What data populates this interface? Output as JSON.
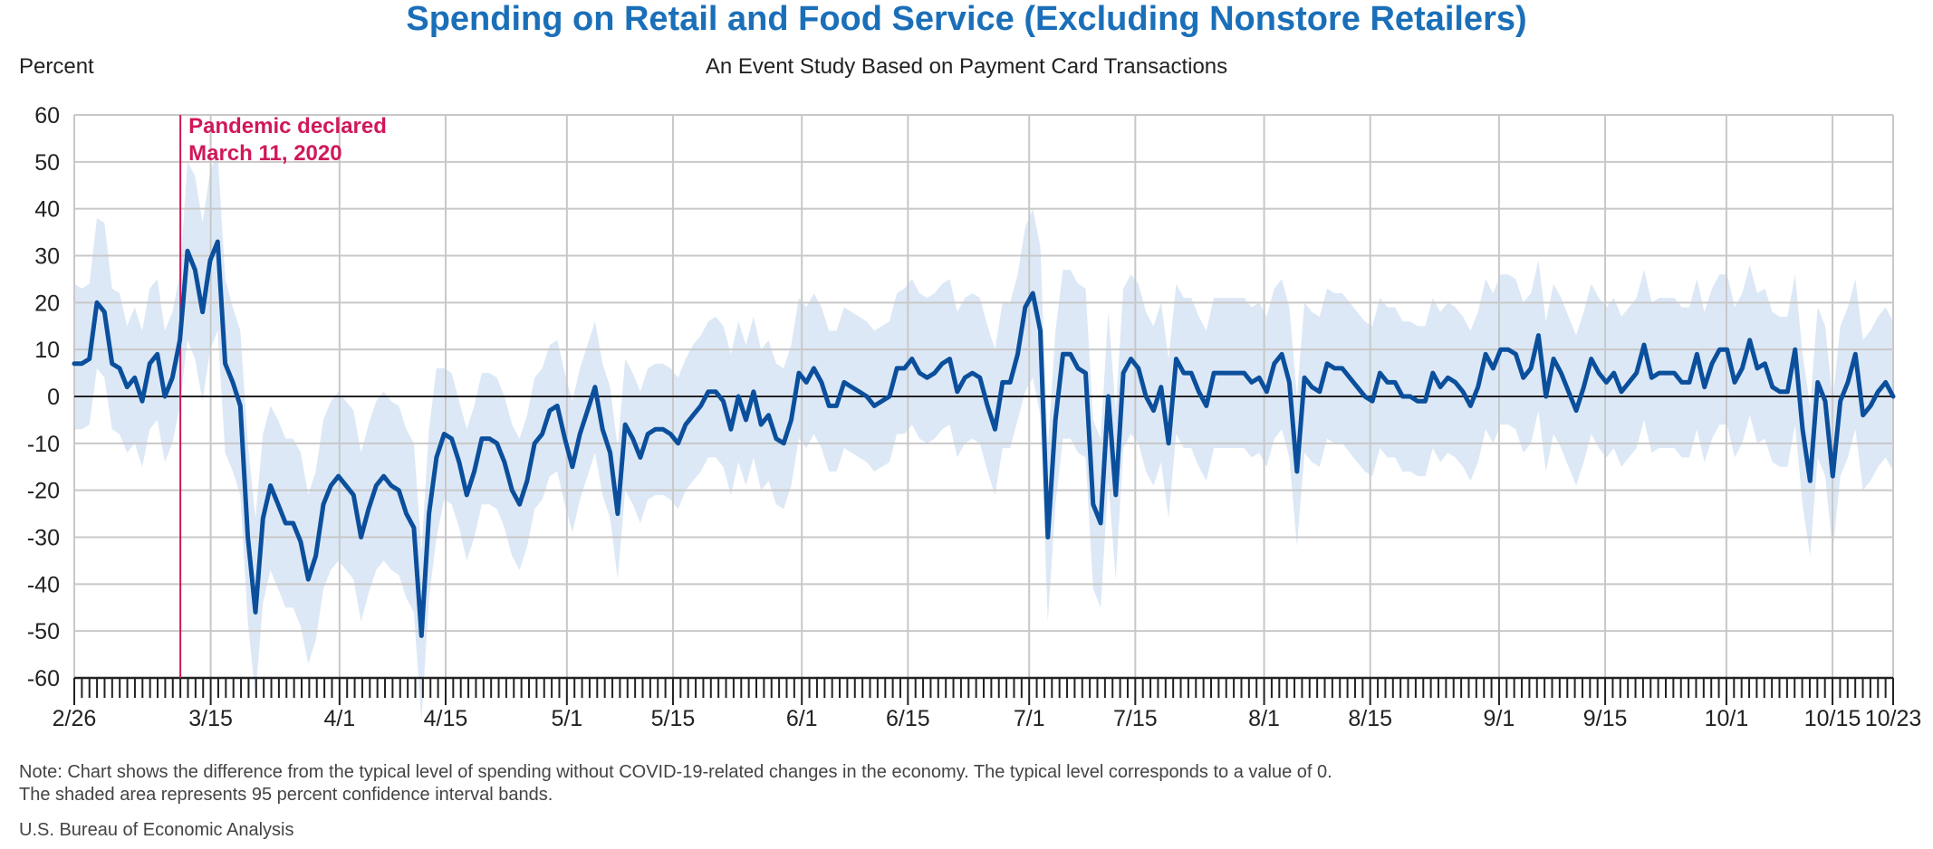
{
  "chart_data": {
    "type": "line",
    "title": "Spending on Retail and Food Service (Excluding Nonstore Retailers)",
    "subtitle": "An Event Study Based on Payment Card Transactions",
    "ylabel": "Percent",
    "xlabel": "",
    "ylim": [
      -60,
      60
    ],
    "yticks": [
      60,
      50,
      40,
      30,
      20,
      10,
      0,
      -10,
      -20,
      -30,
      -40,
      -50,
      -60
    ],
    "x_tick_labels": [
      {
        "day": 0,
        "label": "2/26"
      },
      {
        "day": 18,
        "label": "3/15"
      },
      {
        "day": 35,
        "label": "4/1"
      },
      {
        "day": 49,
        "label": "4/15"
      },
      {
        "day": 65,
        "label": "5/1"
      },
      {
        "day": 79,
        "label": "5/15"
      },
      {
        "day": 96,
        "label": "6/1"
      },
      {
        "day": 110,
        "label": "6/15"
      },
      {
        "day": 126,
        "label": "7/1"
      },
      {
        "day": 140,
        "label": "7/15"
      },
      {
        "day": 157,
        "label": "8/1"
      },
      {
        "day": 171,
        "label": "8/15"
      },
      {
        "day": 188,
        "label": "9/1"
      },
      {
        "day": 202,
        "label": "9/15"
      },
      {
        "day": 218,
        "label": "10/1"
      },
      {
        "day": 232,
        "label": "10/15"
      },
      {
        "day": 240,
        "label": "10/23"
      }
    ],
    "x_range_days": [
      0,
      240
    ],
    "annotation": {
      "day": 14,
      "line1": "Pandemic declared",
      "line2": "March 11, 2020"
    },
    "series": [
      {
        "values": [
          7,
          7,
          8,
          20,
          18,
          7,
          6,
          2,
          4,
          -1,
          7,
          9,
          0,
          4,
          12,
          31,
          27,
          18,
          29,
          33,
          7,
          3,
          -2,
          -30,
          -46,
          -26,
          -19,
          -23,
          -27,
          -27,
          -31,
          -39,
          -34,
          -23,
          -19,
          -17,
          -19,
          -21,
          -30,
          -24,
          -19,
          -17,
          -19,
          -20,
          -25,
          -28,
          -51,
          -25,
          -13,
          -8,
          -9,
          -14,
          -21,
          -16,
          -9,
          -9,
          -10,
          -14,
          -20,
          -23,
          -18,
          -10,
          -8,
          -3,
          -2,
          -9,
          -15,
          -8,
          -3,
          2,
          -7,
          -12,
          -25,
          -6,
          -9,
          -13,
          -8,
          -7,
          -7,
          -8,
          -10,
          -6,
          -4,
          -2,
          1,
          1,
          -1,
          -7,
          0,
          -5,
          1,
          -6,
          -4,
          -9,
          -10,
          -5,
          5,
          3,
          6,
          3,
          -2,
          -2,
          3,
          2,
          1,
          0,
          -2,
          -1,
          0,
          6,
          6,
          8,
          5,
          4,
          5,
          7,
          8,
          1,
          4,
          5,
          4,
          -2,
          -7,
          3,
          3,
          9,
          19,
          22,
          14,
          -30,
          -5,
          9,
          9,
          6,
          5,
          -23,
          -27,
          0,
          -21,
          5,
          8,
          6,
          0,
          -3,
          2,
          -10,
          8,
          5,
          5,
          1,
          -2,
          5,
          5,
          5,
          5,
          5,
          3,
          4,
          1,
          7,
          9,
          3,
          -16,
          4,
          2,
          1,
          7,
          6,
          6,
          4,
          2,
          0,
          -1,
          5,
          3,
          3,
          0,
          0,
          -1,
          -1,
          5,
          2,
          4,
          3,
          1,
          -2,
          2,
          9,
          6,
          10,
          10,
          9,
          4,
          6,
          13,
          0,
          8,
          5,
          1,
          -3,
          2,
          8,
          5,
          3,
          5,
          1,
          3,
          5,
          11,
          4,
          5,
          5,
          5,
          3,
          3,
          9,
          2,
          7,
          10,
          10,
          3,
          6,
          12,
          6,
          7,
          2,
          1,
          1,
          10,
          -7,
          -18,
          3,
          -1,
          -17,
          -1,
          3,
          9,
          -4,
          -2,
          1,
          3,
          0
        ],
        "band_upper": [
          24,
          23,
          24,
          38,
          37,
          23,
          22,
          15,
          19,
          14,
          23,
          25,
          14,
          18,
          26,
          50,
          47,
          37,
          48,
          52,
          25,
          19,
          14,
          -10,
          -26,
          -8,
          -2,
          -5,
          -9,
          -9,
          -12,
          -21,
          -16,
          -5,
          -1,
          1,
          -1,
          -3,
          -12,
          -6,
          -1,
          1,
          -1,
          -2,
          -7,
          -10,
          -33,
          -7,
          6,
          6,
          5,
          -1,
          -7,
          -2,
          5,
          5,
          4,
          0,
          -6,
          -9,
          -4,
          4,
          6,
          11,
          12,
          5,
          -1,
          6,
          11,
          16,
          7,
          2,
          -11,
          8,
          5,
          1,
          6,
          7,
          7,
          6,
          4,
          8,
          11,
          13,
          16,
          17,
          15,
          9,
          16,
          11,
          17,
          10,
          12,
          7,
          6,
          11,
          21,
          19,
          22,
          19,
          14,
          14,
          19,
          18,
          17,
          16,
          14,
          15,
          16,
          22,
          23,
          25,
          22,
          21,
          22,
          24,
          25,
          18,
          21,
          22,
          21,
          15,
          10,
          20,
          20,
          26,
          36,
          40,
          32,
          -11,
          14,
          27,
          27,
          24,
          23,
          -5,
          -9,
          18,
          -3,
          23,
          26,
          24,
          18,
          15,
          20,
          8,
          24,
          21,
          21,
          17,
          14,
          21,
          21,
          21,
          21,
          21,
          19,
          20,
          17,
          23,
          25,
          19,
          0,
          20,
          18,
          17,
          23,
          22,
          22,
          20,
          18,
          16,
          15,
          21,
          19,
          19,
          16,
          16,
          15,
          15,
          21,
          18,
          20,
          19,
          17,
          14,
          18,
          25,
          22,
          26,
          26,
          25,
          20,
          22,
          29,
          16,
          24,
          21,
          17,
          13,
          18,
          24,
          21,
          19,
          21,
          17,
          19,
          21,
          27,
          20,
          21,
          21,
          21,
          19,
          19,
          25,
          18,
          23,
          26,
          26,
          19,
          22,
          28,
          22,
          23,
          18,
          17,
          17,
          26,
          9,
          -2,
          19,
          15,
          -1,
          15,
          19,
          25,
          12,
          14,
          17,
          19,
          16
        ],
        "band_lower": [
          -7,
          -7,
          -6,
          6,
          4,
          -7,
          -8,
          -12,
          -10,
          -15,
          -7,
          -5,
          -14,
          -10,
          -2,
          12,
          8,
          -1,
          10,
          14,
          -12,
          -16,
          -21,
          -48,
          -64,
          -44,
          -37,
          -41,
          -45,
          -45,
          -49,
          -57,
          -52,
          -41,
          -37,
          -35,
          -37,
          -39,
          -48,
          -42,
          -37,
          -35,
          -37,
          -38,
          -43,
          -46,
          -69,
          -43,
          -30,
          -22,
          -23,
          -28,
          -35,
          -30,
          -23,
          -23,
          -24,
          -28,
          -34,
          -37,
          -32,
          -24,
          -22,
          -17,
          -16,
          -23,
          -29,
          -22,
          -17,
          -12,
          -21,
          -26,
          -39,
          -20,
          -23,
          -27,
          -22,
          -21,
          -21,
          -22,
          -24,
          -20,
          -18,
          -16,
          -13,
          -13,
          -15,
          -21,
          -14,
          -19,
          -13,
          -20,
          -18,
          -23,
          -24,
          -19,
          -9,
          -11,
          -8,
          -11,
          -16,
          -16,
          -11,
          -12,
          -13,
          -14,
          -16,
          -15,
          -14,
          -8,
          -8,
          -6,
          -9,
          -10,
          -9,
          -7,
          -6,
          -13,
          -10,
          -9,
          -10,
          -16,
          -21,
          -11,
          -11,
          -5,
          1,
          4,
          -4,
          -48,
          -23,
          -9,
          -9,
          -12,
          -13,
          -41,
          -45,
          -18,
          -39,
          -11,
          -8,
          -10,
          -16,
          -19,
          -14,
          -26,
          -8,
          -11,
          -11,
          -15,
          -18,
          -11,
          -11,
          -11,
          -11,
          -11,
          -13,
          -12,
          -15,
          -9,
          -7,
          -13,
          -32,
          -12,
          -14,
          -15,
          -9,
          -10,
          -10,
          -12,
          -14,
          -16,
          -17,
          -11,
          -13,
          -13,
          -16,
          -16,
          -17,
          -17,
          -11,
          -14,
          -12,
          -13,
          -15,
          -18,
          -14,
          -7,
          -10,
          -6,
          -6,
          -7,
          -12,
          -10,
          -3,
          -16,
          -8,
          -11,
          -15,
          -19,
          -14,
          -8,
          -11,
          -13,
          -11,
          -15,
          -13,
          -11,
          -5,
          -12,
          -11,
          -11,
          -11,
          -13,
          -13,
          -7,
          -14,
          -9,
          -6,
          -6,
          -13,
          -10,
          -4,
          -10,
          -9,
          -14,
          -15,
          -15,
          -6,
          -23,
          -34,
          -13,
          -17,
          -33,
          -17,
          -13,
          -7,
          -20,
          -18,
          -15,
          -13,
          -16
        ]
      }
    ],
    "colors": {
      "line": "#0b4f9c",
      "band": "#dce8f6",
      "grid": "#c8c8c8",
      "zero_line": "#222222",
      "annotation": "#d0185a",
      "title": "#1a6fb8"
    },
    "note_line1": "Note: Chart shows the difference from the typical level of spending without COVID-19-related changes in the economy. The typical level corresponds to a value of 0.",
    "note_line2": "The shaded area represents 95 percent confidence interval bands.",
    "source": "U.S. Bureau of Economic Analysis"
  }
}
